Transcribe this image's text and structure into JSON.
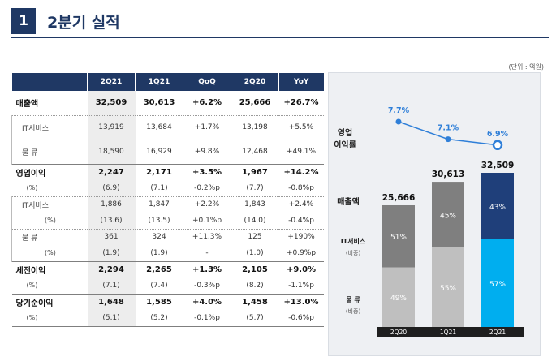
{
  "header": {
    "number": "1",
    "title": "2분기 실적"
  },
  "unit_note": "(단위 : 억원)",
  "table": {
    "columns": [
      "",
      "2Q21",
      "1Q21",
      "QoQ",
      "2Q20",
      "YoY"
    ],
    "rows": [
      {
        "kind": "main",
        "cells": [
          "매출액",
          "32,509",
          "30,613",
          "+6.2%",
          "25,666",
          "+26.7%"
        ]
      },
      {
        "kind": "sub",
        "cells": [
          "IT서비스",
          "13,919",
          "13,684",
          "+1.7%",
          "13,198",
          "+5.5%"
        ]
      },
      {
        "kind": "sub",
        "cells": [
          "물  류",
          "18,590",
          "16,929",
          "+9.8%",
          "12,468",
          "+49.1%"
        ]
      },
      {
        "kind": "main",
        "cells": [
          "영업이익",
          "2,247",
          "2,171",
          "+3.5%",
          "1,967",
          "+14.2%"
        ]
      },
      {
        "kind": "pct",
        "cells": [
          "(%)",
          "(6.9)",
          "(7.1)",
          "-0.2%p",
          "(7.7)",
          "-0.8%p"
        ]
      },
      {
        "kind": "sub",
        "cells": [
          "IT서비스",
          "1,886",
          "1,847",
          "+2.2%",
          "1,843",
          "+2.4%"
        ]
      },
      {
        "kind": "subpct",
        "cells": [
          "(%)",
          "(13.6)",
          "(13.5)",
          "+0.1%p",
          "(14.0)",
          "-0.4%p"
        ]
      },
      {
        "kind": "sub",
        "cells": [
          "물  류",
          "361",
          "324",
          "+11.3%",
          "125",
          "+190%"
        ]
      },
      {
        "kind": "subpct",
        "cells": [
          "(%)",
          "(1.9)",
          "(1.9)",
          "-",
          "(1.0)",
          "+0.9%p"
        ]
      },
      {
        "kind": "main",
        "cells": [
          "세전이익",
          "2,294",
          "2,265",
          "+1.3%",
          "2,105",
          "+9.0%"
        ]
      },
      {
        "kind": "pct",
        "cells": [
          "(%)",
          "(7.1)",
          "(7.4)",
          "-0.3%p",
          "(8.2)",
          "-1.1%p"
        ]
      },
      {
        "kind": "main",
        "cells": [
          "당기순이익",
          "1,648",
          "1,585",
          "+4.0%",
          "1,458",
          "+13.0%"
        ]
      },
      {
        "kind": "pct",
        "cells": [
          "(%)",
          "(5.1)",
          "(5.2)",
          "-0.1%p",
          "(5.7)",
          "-0.6%p"
        ]
      }
    ]
  },
  "chart_data": {
    "type": "bar",
    "categories": [
      "2Q20",
      "1Q21",
      "2Q21"
    ],
    "totals": [
      "25,666",
      "30,613",
      "32,509"
    ],
    "total_values": [
      25666,
      30613,
      32509
    ],
    "series": [
      {
        "name": "IT서비스",
        "sublabel": "(비중)",
        "values": [
          51,
          45,
          43
        ],
        "labels": [
          "51%",
          "45%",
          "43%"
        ]
      },
      {
        "name": "물 류",
        "sublabel": "(비중)",
        "values": [
          49,
          55,
          57
        ],
        "labels": [
          "49%",
          "55%",
          "57%"
        ]
      }
    ],
    "line": {
      "name": "영업\n이익률",
      "values": [
        7.7,
        7.1,
        6.9
      ],
      "labels": [
        "7.7%",
        "7.1%",
        "6.9%"
      ]
    },
    "left_labels": {
      "revenue": "매출액",
      "line_1": "영업",
      "line_2": "이익률"
    },
    "colors": {
      "it_past": "#7f7f7f",
      "it_current": "#1f3f7a",
      "logi_past": "#bfbfbf",
      "logi_current": "#00aeef",
      "line": "#2f7fd8",
      "axis": "#1f1f1f"
    }
  }
}
